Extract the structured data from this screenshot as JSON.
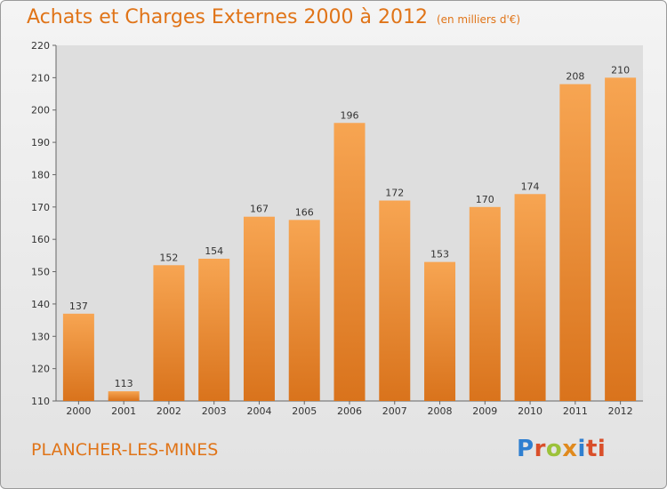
{
  "title": "Achats et Charges Externes 2000 à 2012",
  "subtitle": "(en milliers d'€)",
  "city": "PLANCHER-LES-MINES",
  "logo": [
    "P",
    "r",
    "o",
    "x",
    "i",
    "ti"
  ],
  "colors": {
    "bar_light": "#f7a552",
    "bar_dark": "#d9731c",
    "accent": "#e07418"
  },
  "chart_data": {
    "type": "bar",
    "categories": [
      "2000",
      "2001",
      "2002",
      "2003",
      "2004",
      "2005",
      "2006",
      "2007",
      "2008",
      "2009",
      "2010",
      "2011",
      "2012"
    ],
    "values": [
      137,
      113,
      152,
      154,
      167,
      166,
      196,
      172,
      153,
      170,
      174,
      208,
      210
    ],
    "ylim": [
      110,
      220
    ],
    "yticks": [
      110,
      120,
      130,
      140,
      150,
      160,
      170,
      180,
      190,
      200,
      210,
      220
    ],
    "grid": false,
    "legend": "none"
  }
}
